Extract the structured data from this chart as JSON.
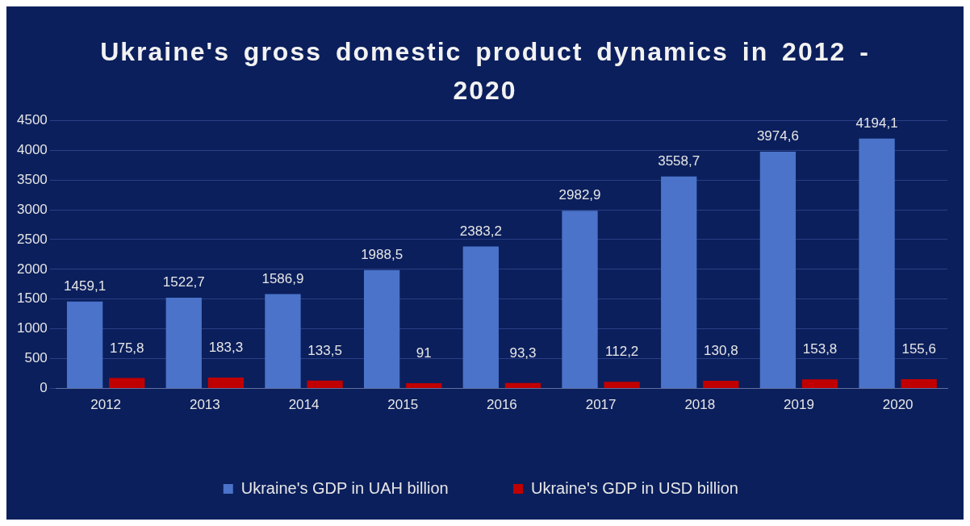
{
  "chart_data": {
    "type": "bar",
    "title": "Ukraine's gross domestic product dynamics in 2012 - 2020",
    "categories": [
      "2012",
      "2013",
      "2014",
      "2015",
      "2016",
      "2017",
      "2018",
      "2019",
      "2020"
    ],
    "series": [
      {
        "name": "Ukraine's GDP in UAH billion",
        "color": "#4a73c9",
        "values": [
          1459.1,
          1522.7,
          1586.9,
          1988.5,
          2383.2,
          2982.9,
          3558.7,
          3974.6,
          4194.1
        ],
        "value_labels": [
          "1459,1",
          "1522,7",
          "1586,9",
          "1988,5",
          "2383,2",
          "2982,9",
          "3558,7",
          "3974,6",
          "4194,1"
        ]
      },
      {
        "name": "Ukraine's GDP in USD billion",
        "color": "#c00000",
        "values": [
          175.8,
          183.3,
          133.5,
          91,
          93.3,
          112.2,
          130.8,
          153.8,
          155.6
        ],
        "value_labels": [
          "175,8",
          "183,3",
          "133,5",
          "91",
          "93,3",
          "112,2",
          "130,8",
          "153,8",
          "155,6"
        ]
      }
    ],
    "ylim": [
      0,
      4500
    ],
    "yticks": [
      0,
      500,
      1000,
      1500,
      2000,
      2500,
      3000,
      3500,
      4000,
      4500
    ],
    "grid": "y",
    "legend": "bottom"
  }
}
